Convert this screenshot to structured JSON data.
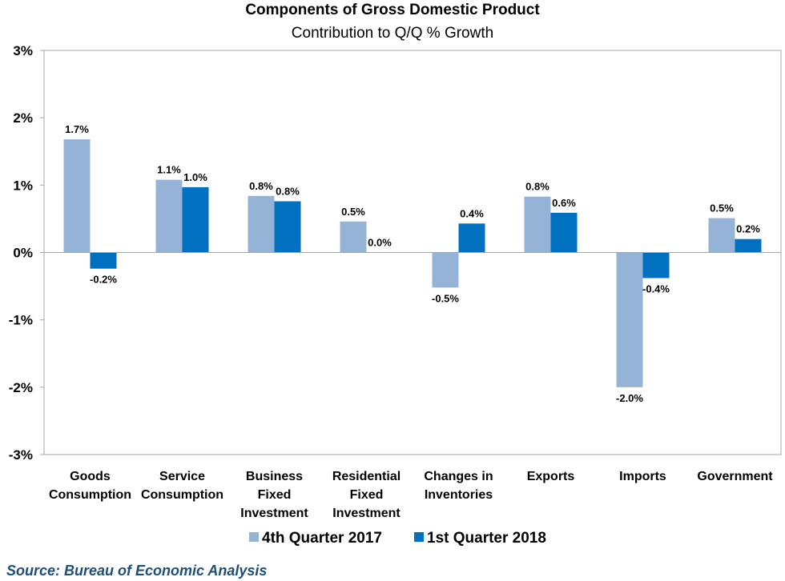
{
  "chart_data": {
    "type": "bar",
    "title": "Components of Gross Domestic Product",
    "subtitle": "Contribution to Q/Q % Growth",
    "categories": [
      [
        "Goods",
        "Consumption"
      ],
      [
        "Service",
        "Consumption"
      ],
      [
        "Business",
        "Fixed",
        "Investment"
      ],
      [
        "Residential",
        "Fixed",
        "Investment"
      ],
      [
        "Changes in",
        "Inventories"
      ],
      [
        "Exports"
      ],
      [
        "Imports"
      ],
      [
        "Government"
      ]
    ],
    "series": [
      {
        "name": "4th Quarter 2017",
        "color": "#95B3D7",
        "values": [
          1.68,
          1.08,
          0.84,
          0.46,
          -0.52,
          0.83,
          -2.0,
          0.51
        ],
        "labels": [
          "1.7%",
          "1.1%",
          "0.8%",
          "0.5%",
          "-0.5%",
          "0.8%",
          "-2.0%",
          "0.5%"
        ]
      },
      {
        "name": "1st Quarter 2018",
        "color": "#0070C0",
        "values": [
          -0.24,
          0.97,
          0.76,
          0.0,
          0.43,
          0.59,
          -0.38,
          0.2
        ],
        "labels": [
          "-0.2%",
          "1.0%",
          "0.8%",
          "0.0%",
          "0.4%",
          "0.6%",
          "-0.4%",
          "0.2%"
        ]
      }
    ],
    "ylim": [
      -3,
      3
    ],
    "yticks": [
      3,
      2,
      1,
      0,
      -1,
      -2,
      -3
    ],
    "ytick_labels": [
      "3%",
      "2%",
      "1%",
      "0%",
      "-1%",
      "-2%",
      "-3%"
    ],
    "grid": false,
    "legend_position": "bottom"
  },
  "source": "Source: Bureau of Economic Analysis"
}
